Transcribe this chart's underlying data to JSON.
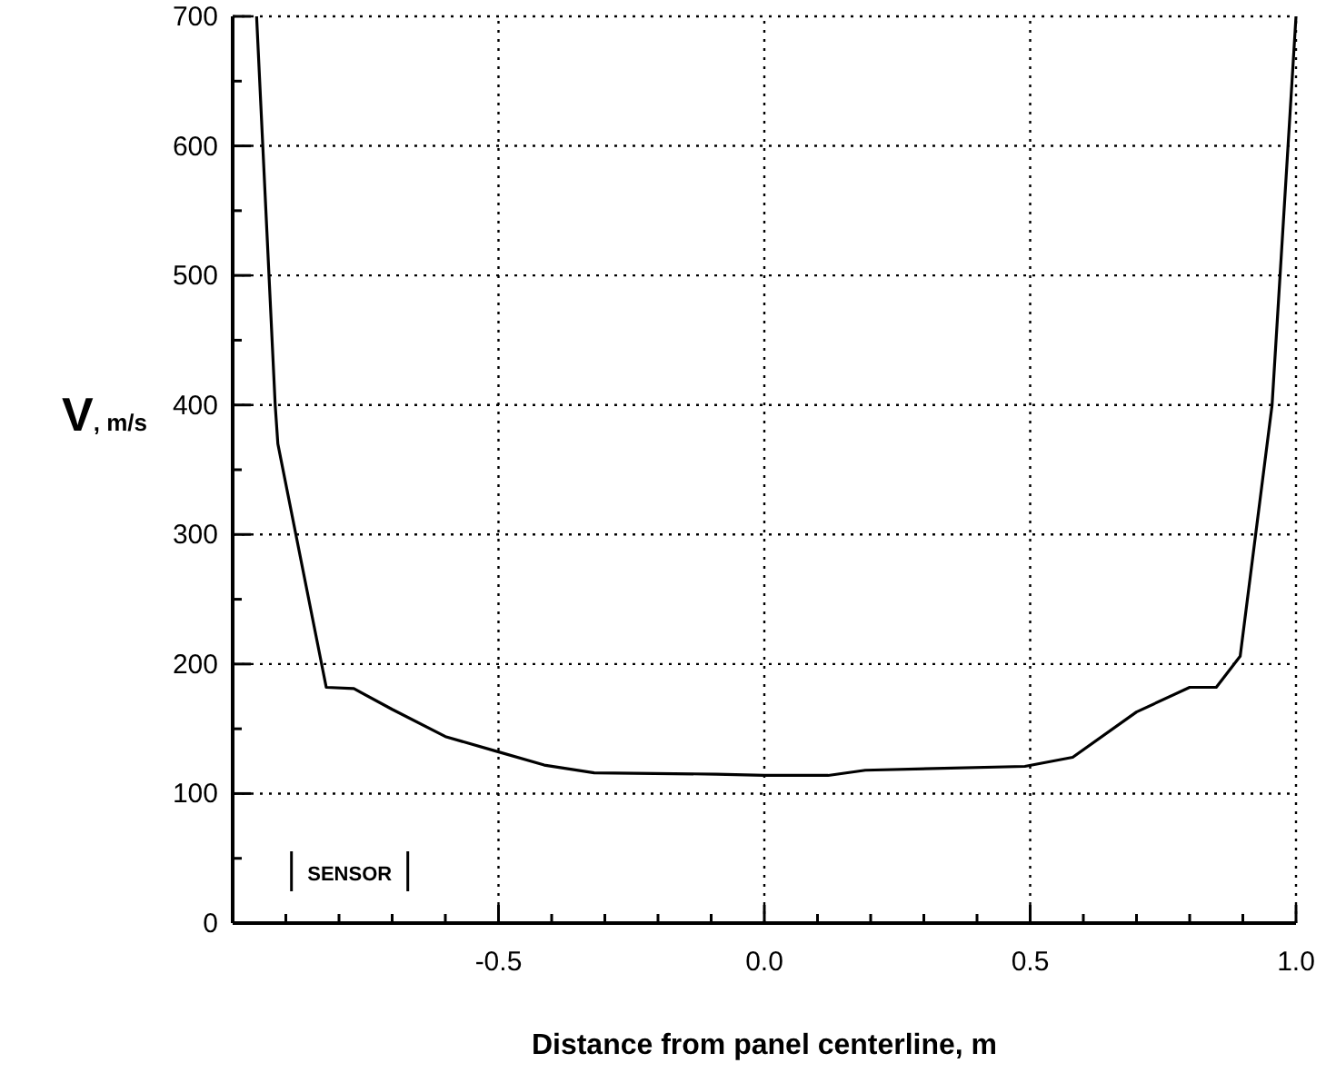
{
  "chart_data": {
    "type": "line",
    "xlabel": "Distance from panel centerline, m",
    "ylabel": "V, m/s",
    "x": [
      -0.955,
      -0.92,
      -0.915,
      -0.824,
      -0.772,
      -0.7,
      -0.6,
      -0.507,
      -0.414,
      -0.32,
      -0.09,
      0.0,
      0.12,
      0.19,
      0.49,
      0.58,
      0.7,
      0.8,
      0.85,
      0.895,
      0.955,
      1.0
    ],
    "series": [
      {
        "color": "#000000",
        "values": [
          700,
          400,
          370,
          182,
          181,
          165,
          144,
          133,
          122,
          116,
          115,
          114,
          114,
          118,
          121,
          128,
          163,
          182,
          182,
          206,
          400,
          700
        ]
      }
    ],
    "xlim": [
      -1,
      1
    ],
    "xticks": [
      {
        "value": -0.9,
        "label": null
      },
      {
        "value": -0.8,
        "label": null
      },
      {
        "value": -0.7,
        "label": null
      },
      {
        "value": -0.6,
        "label": null
      },
      {
        "value": -0.5,
        "label": "-0.5"
      },
      {
        "value": -0.4,
        "label": null
      },
      {
        "value": -0.3,
        "label": null
      },
      {
        "value": -0.2,
        "label": null
      },
      {
        "value": -0.1,
        "label": null
      },
      {
        "value": 0,
        "label": "0.0"
      },
      {
        "value": 0.1,
        "label": null
      },
      {
        "value": 0.2,
        "label": null
      },
      {
        "value": 0.3,
        "label": null
      },
      {
        "value": 0.4,
        "label": null
      },
      {
        "value": 0.5,
        "label": "0.5"
      },
      {
        "value": 0.6,
        "label": null
      },
      {
        "value": 0.7,
        "label": null
      },
      {
        "value": 0.8,
        "label": null
      },
      {
        "value": 0.9,
        "label": null
      },
      {
        "value": 1,
        "label": "1.0"
      }
    ],
    "ylim": [
      0,
      700
    ],
    "yticks": [
      0,
      {
        "value": 50,
        "label": null
      },
      100,
      {
        "value": 150,
        "label": null
      },
      200,
      {
        "value": 250,
        "label": null
      },
      300,
      {
        "value": 350,
        "label": null
      },
      400,
      {
        "value": 450,
        "label": null
      },
      500,
      {
        "value": 550,
        "label": null
      },
      600,
      {
        "value": 650,
        "label": null
      },
      700
    ],
    "grid": true,
    "marker": "none",
    "line_style": "solid",
    "annotations": [
      "SENSOR"
    ]
  }
}
